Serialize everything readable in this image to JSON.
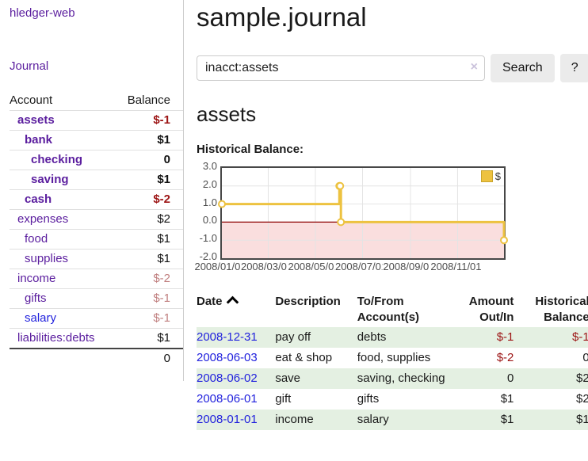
{
  "app": {
    "title": "hledger-web",
    "nav_journal": "Journal"
  },
  "sidebar": {
    "header": {
      "account": "Account",
      "balance": "Balance"
    },
    "accounts": [
      {
        "name": "assets",
        "level": 1,
        "bold": true,
        "balance": "$-1",
        "balance_class": "neg-strong"
      },
      {
        "name": "bank",
        "level": 2,
        "bold": true,
        "balance": "$1",
        "balance_class": ""
      },
      {
        "name": "checking",
        "level": 3,
        "bold": true,
        "balance": "0",
        "balance_class": ""
      },
      {
        "name": "saving",
        "level": 3,
        "bold": true,
        "balance": "$1",
        "balance_class": ""
      },
      {
        "name": "cash",
        "level": 2,
        "bold": true,
        "balance": "$-2",
        "balance_class": "neg-strong"
      },
      {
        "name": "expenses",
        "level": 1,
        "bold": false,
        "balance": "$2",
        "balance_class": ""
      },
      {
        "name": "food",
        "level": 2,
        "bold": false,
        "balance": "$1",
        "balance_class": ""
      },
      {
        "name": "supplies",
        "level": 2,
        "bold": false,
        "balance": "$1",
        "balance_class": ""
      },
      {
        "name": "income",
        "level": 1,
        "bold": false,
        "balance": "$-2",
        "balance_class": "neg-soft"
      },
      {
        "name": "gifts",
        "level": 2,
        "bold": false,
        "balance": "$-1",
        "balance_class": "neg-soft"
      },
      {
        "name": "salary",
        "level": 2,
        "bold": false,
        "balance": "$-1",
        "balance_class": "neg-soft",
        "link_color": "blue"
      },
      {
        "name": "liabilities:debts",
        "level": 1,
        "bold": false,
        "balance": "$1",
        "balance_class": ""
      }
    ],
    "total": "0"
  },
  "header": {
    "title": "sample.journal"
  },
  "search": {
    "value": "inacct:assets",
    "clear_icon": "×",
    "button": "Search",
    "help_button": "?"
  },
  "account_page": {
    "heading": "assets",
    "chart_title": "Historical Balance:"
  },
  "chart_data": {
    "type": "line",
    "step": true,
    "title": "Historical Balance:",
    "series": [
      {
        "name": "$",
        "color": "#edc240",
        "points": [
          [
            "2008-01-01",
            1
          ],
          [
            "2008-06-01",
            2
          ],
          [
            "2008-06-02",
            2
          ],
          [
            "2008-06-03",
            0
          ],
          [
            "2008-12-31",
            -1
          ]
        ]
      }
    ],
    "x_start": "2008-01-01",
    "x_end": "2008-12-31",
    "x_tick_dates": [
      "2008-01-01",
      "2008-03-01",
      "2008-05-01",
      "2008-07-01",
      "2008-09-01",
      "2008-11-01"
    ],
    "x_tick_labels": [
      "2008/01/01",
      "2008/03/01",
      "2008/05/01",
      "2008/07/01",
      "2008/09/01",
      "2008/11/01"
    ],
    "y_ticks": [
      3,
      2,
      1,
      0,
      -1,
      -2
    ],
    "ylim": [
      -2,
      3
    ],
    "grid": true,
    "grid_color": "#e4e4e4",
    "negative_fill": "#fadede",
    "zero_line_color": "#8e0000",
    "legend": {
      "label": "$",
      "position": "top-right"
    }
  },
  "register": {
    "columns": [
      {
        "line1": "Date",
        "line2": "",
        "align": "left",
        "sorted": "asc"
      },
      {
        "line1": "Description",
        "line2": "",
        "align": "left"
      },
      {
        "line1": "To/From",
        "line2": "Account(s)",
        "align": "left"
      },
      {
        "line1": "Amount",
        "line2": "Out/In",
        "align": "right"
      },
      {
        "line1": "Historical",
        "line2": "Balance",
        "align": "right"
      }
    ],
    "rows": [
      {
        "date": "2008-12-31",
        "description": "pay off",
        "accounts": "debts",
        "amount": "$-1",
        "amount_class": "neg",
        "balance": "$-1",
        "balance_class": "neg"
      },
      {
        "date": "2008-06-03",
        "description": "eat & shop",
        "accounts": "food, supplies",
        "amount": "$-2",
        "amount_class": "neg",
        "balance": "0",
        "balance_class": ""
      },
      {
        "date": "2008-06-02",
        "description": "save",
        "accounts": "saving, checking",
        "amount": "0",
        "amount_class": "",
        "balance": "$2",
        "balance_class": ""
      },
      {
        "date": "2008-06-01",
        "description": "gift",
        "accounts": "gifts",
        "amount": "$1",
        "amount_class": "",
        "balance": "$2",
        "balance_class": ""
      },
      {
        "date": "2008-01-01",
        "description": "income",
        "accounts": "salary",
        "amount": "$1",
        "amount_class": "",
        "balance": "$1",
        "balance_class": ""
      }
    ]
  },
  "colors": {
    "accent_purple": "#5a1d9e",
    "link_blue": "#2222dd",
    "negative_strong": "#9c1414",
    "negative_soft": "#c07f7f",
    "row_green": "#e4f0e2",
    "chart_line": "#edc240"
  }
}
